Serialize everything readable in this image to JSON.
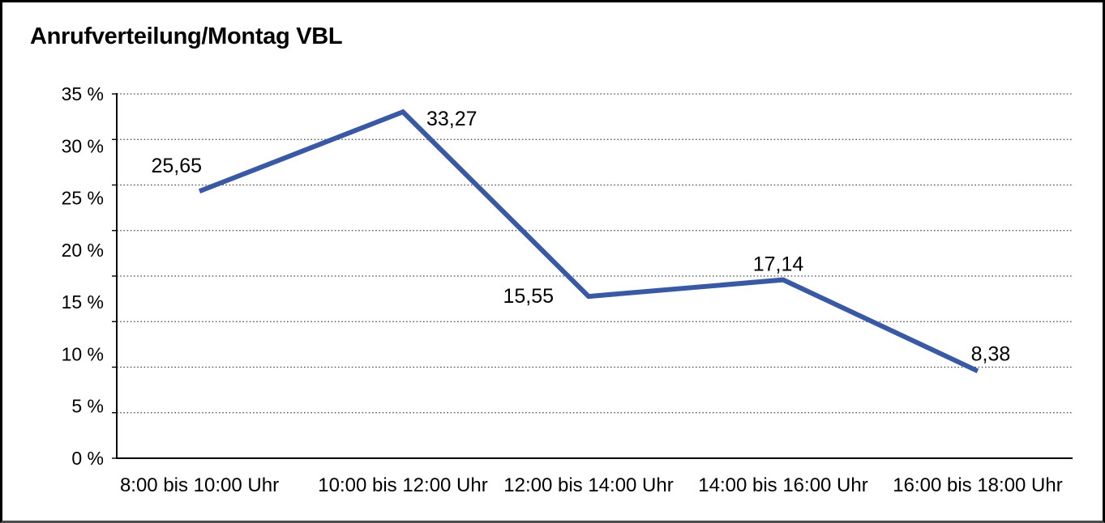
{
  "title": "Anrufverteilung/Montag VBL",
  "colors": {
    "line": "#3A59A4",
    "grid": "#4A4A4A",
    "axis": "#000000",
    "text": "#000000",
    "background": "#FFFFFF",
    "frame_border": "#000000"
  },
  "chart_data": {
    "type": "line",
    "title": "Anrufverteilung/Montag VBL",
    "categories": [
      "8:00 bis 10:00 Uhr",
      "10:00 bis 12:00 Uhr",
      "12:00 bis 14:00 Uhr",
      "14:00 bis 16:00 Uhr",
      "16:00 bis 18:00 Uhr"
    ],
    "values": [
      25.65,
      33.27,
      15.55,
      17.14,
      8.38
    ],
    "value_labels": [
      "25,65",
      "33,27",
      "15,55",
      "17,14",
      "8,38"
    ],
    "xlabel": "",
    "ylabel": "",
    "ylim": [
      0,
      35
    ],
    "y_tick_labels": [
      "35 %",
      "30 %",
      "25 %",
      "20 %",
      "15 %",
      "10 %",
      "5 %",
      "0 %"
    ],
    "y_tick_values": [
      35,
      30,
      25,
      20,
      15,
      10,
      5,
      0
    ],
    "grid": "dotted-horizontal",
    "grid_divisions": 8,
    "legend_position": "none",
    "line_color": "#3A59A4"
  }
}
